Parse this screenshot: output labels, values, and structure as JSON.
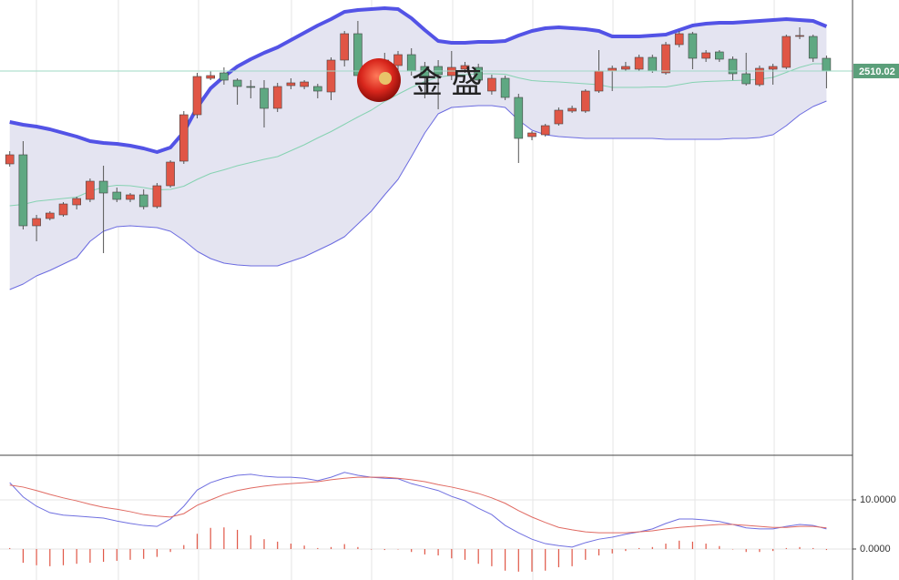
{
  "chart_data": [
    {
      "type": "candlestick",
      "watermark": "金 盛",
      "up_color": "#e05646",
      "down_color": "#5fa882",
      "ylim": [
        2088,
        2588
      ],
      "open": [
        2408,
        2418,
        2340,
        2348,
        2352,
        2363,
        2369,
        2389,
        2377,
        2369,
        2374,
        2361,
        2384,
        2411,
        2462,
        2502,
        2508,
        2500,
        2493,
        2491,
        2469,
        2494,
        2493,
        2493,
        2487,
        2522,
        2551,
        2518,
        2516,
        2516,
        2528,
        2515,
        2515,
        2505,
        2512,
        2514,
        2488,
        2502,
        2481,
        2438,
        2440,
        2452,
        2466,
        2466,
        2488,
        2510,
        2512,
        2512,
        2525,
        2508,
        2539,
        2551,
        2524,
        2531,
        2523,
        2507,
        2495,
        2512,
        2514,
        2548,
        2548,
        2524
      ],
      "high": [
        2422,
        2433,
        2352,
        2356,
        2366,
        2372,
        2392,
        2406,
        2382,
        2376,
        2380,
        2387,
        2412,
        2466,
        2508,
        2510,
        2514,
        2502,
        2500,
        2500,
        2497,
        2502,
        2500,
        2496,
        2525,
        2554,
        2565,
        2522,
        2530,
        2532,
        2535,
        2520,
        2522,
        2532,
        2520,
        2518,
        2506,
        2505,
        2485,
        2444,
        2452,
        2470,
        2472,
        2490,
        2533,
        2516,
        2520,
        2528,
        2528,
        2542,
        2554,
        2553,
        2533,
        2533,
        2526,
        2530,
        2516,
        2518,
        2550,
        2558,
        2550,
        2527
      ],
      "low": [
        2405,
        2336,
        2323,
        2346,
        2350,
        2358,
        2366,
        2310,
        2366,
        2366,
        2358,
        2359,
        2382,
        2408,
        2458,
        2500,
        2495,
        2473,
        2480,
        2448,
        2465,
        2490,
        2490,
        2480,
        2478,
        2515,
        2500,
        2490,
        2512,
        2510,
        2505,
        2480,
        2468,
        2500,
        2508,
        2496,
        2484,
        2478,
        2409,
        2434,
        2438,
        2450,
        2464,
        2464,
        2486,
        2488,
        2510,
        2510,
        2508,
        2506,
        2536,
        2512,
        2520,
        2520,
        2500,
        2494,
        2493,
        2495,
        2512,
        2545,
        2520,
        2491
      ],
      "close": [
        2418,
        2340,
        2348,
        2354,
        2364,
        2370,
        2389,
        2376,
        2369,
        2374,
        2361,
        2384,
        2410,
        2462,
        2504,
        2505,
        2500,
        2493,
        2492,
        2469,
        2493,
        2497,
        2498,
        2488,
        2522,
        2551,
        2505,
        2495,
        2522,
        2528,
        2510,
        2503,
        2506,
        2514,
        2516,
        2500,
        2502,
        2481,
        2436,
        2442,
        2450,
        2467,
        2469,
        2488,
        2510,
        2513,
        2515,
        2525,
        2510,
        2539,
        2551,
        2524,
        2530,
        2523,
        2507,
        2496,
        2513,
        2515,
        2548,
        2549,
        2524,
        2510.02
      ],
      "band_fill": "#e4e4f1",
      "bands": [
        {
          "color": "#5353e6",
          "line_width": 4,
          "values": [
            2454,
            2451,
            2449,
            2446,
            2442,
            2438,
            2433,
            2431,
            2430,
            2428,
            2425,
            2421,
            2426,
            2443,
            2470,
            2491,
            2504,
            2515,
            2523,
            2530,
            2536,
            2544,
            2552,
            2560,
            2567,
            2575,
            2577,
            2578,
            2579,
            2578,
            2568,
            2555,
            2543,
            2541,
            2541,
            2542,
            2542,
            2543,
            2549,
            2554,
            2557,
            2558,
            2557,
            2556,
            2554,
            2548,
            2548,
            2548,
            2549,
            2550,
            2555,
            2560,
            2562,
            2563,
            2563,
            2564,
            2565,
            2566,
            2567,
            2566,
            2565,
            2559
          ]
        },
        {
          "color": "#86d2b2",
          "line_width": 1,
          "values": [
            2362,
            2363.5,
            2367,
            2368.5,
            2370,
            2371.5,
            2378,
            2382.5,
            2384.5,
            2384,
            2382,
            2379.5,
            2380,
            2383.5,
            2391,
            2397.5,
            2401.5,
            2406,
            2409.5,
            2413,
            2416,
            2422.5,
            2429,
            2436.5,
            2443.5,
            2451.5,
            2459.5,
            2467,
            2476.5,
            2484.5,
            2492,
            2498.5,
            2503,
            2505.5,
            2506,
            2507,
            2507,
            2506.5,
            2502.5,
            2499.5,
            2498.5,
            2498,
            2497,
            2496,
            2495,
            2492,
            2492,
            2492,
            2492.5,
            2492.5,
            2495,
            2497.5,
            2498.5,
            2499,
            2499.5,
            2500,
            2501,
            2503,
            2508.5,
            2514,
            2518,
            2518
          ]
        },
        {
          "color": "#6b6be0",
          "line_width": 1,
          "values": [
            2270,
            2276,
            2285,
            2291,
            2298,
            2305,
            2323,
            2334,
            2339,
            2340,
            2339,
            2338,
            2334,
            2324,
            2312,
            2304,
            2299,
            2297,
            2296,
            2296,
            2296,
            2301,
            2306,
            2313,
            2320,
            2328,
            2342,
            2356,
            2374,
            2391,
            2416,
            2442,
            2463,
            2470,
            2471,
            2472,
            2472,
            2470,
            2456,
            2445,
            2440,
            2438,
            2437,
            2436,
            2436,
            2436,
            2436,
            2436,
            2436,
            2435,
            2435,
            2435,
            2435,
            2435,
            2436,
            2436,
            2437,
            2440,
            2450,
            2462,
            2471,
            2477
          ]
        }
      ],
      "price_line_color": "#9fd9c6",
      "price_label_color": "#5b9f7a"
    },
    {
      "type": "macd",
      "ylim": [
        -6.3,
        19.07
      ],
      "yticks": [
        {
          "value": 10,
          "label": "10.0000"
        },
        {
          "value": 0,
          "label": "0.0000"
        }
      ],
      "grid": true,
      "histogram_color": "#e05646",
      "histogram": [
        0.2,
        -2.8,
        -3.3,
        -3.5,
        -3.3,
        -3.0,
        -2.8,
        -2.6,
        -2.4,
        -2.2,
        -2.0,
        -1.6,
        -0.6,
        0.8,
        3.1,
        4.3,
        4.4,
        3.9,
        2.8,
        2.0,
        1.5,
        1.1,
        0.7,
        0.2,
        0.4,
        1.0,
        0.4,
        0,
        -0.2,
        0,
        -0.6,
        -1.1,
        -1.3,
        -1.9,
        -2.2,
        -3.0,
        -3.5,
        -4.4,
        -4.6,
        -4.6,
        -4.4,
        -3.7,
        -3.5,
        -2.2,
        -1.3,
        -0.9,
        -0.4,
        0.2,
        0.4,
        1.1,
        1.7,
        1.5,
        1.1,
        0.6,
        0,
        -0.6,
        -0.6,
        -0.4,
        0.2,
        0.4,
        0.2,
        -0.2
      ],
      "series": [
        {
          "color": "#6f6fe0",
          "values": [
            13.5,
            10.6,
            8.7,
            7.4,
            6.9,
            6.7,
            6.5,
            6.3,
            5.7,
            5.2,
            4.8,
            4.6,
            6.1,
            8.7,
            12.0,
            13.5,
            14.4,
            15.0,
            15.2,
            14.8,
            14.6,
            14.6,
            14.4,
            13.9,
            14.6,
            15.6,
            15.0,
            14.6,
            14.4,
            14.3,
            13.3,
            12.6,
            11.9,
            10.7,
            9.8,
            8.3,
            7.0,
            4.8,
            3.3,
            2.0,
            1.1,
            0.7,
            0.4,
            1.3,
            2.0,
            2.4,
            3.0,
            3.5,
            4.1,
            5.2,
            6.1,
            6.1,
            5.9,
            5.6,
            5.0,
            4.3,
            4.1,
            4.1,
            4.6,
            5.0,
            4.8,
            4.1
          ]
        },
        {
          "color": "#e06a62",
          "values": [
            13.0,
            12.6,
            11.9,
            11.1,
            10.4,
            9.8,
            9.1,
            8.5,
            8.1,
            7.6,
            7.0,
            6.7,
            6.5,
            7.2,
            8.9,
            10.0,
            11.1,
            11.9,
            12.4,
            12.8,
            13.1,
            13.3,
            13.5,
            13.7,
            14.1,
            14.4,
            14.6,
            14.6,
            14.6,
            14.4,
            14.1,
            13.7,
            13.1,
            12.6,
            12.0,
            11.3,
            10.4,
            9.3,
            7.8,
            6.5,
            5.4,
            4.4,
            3.9,
            3.5,
            3.3,
            3.3,
            3.3,
            3.5,
            3.7,
            4.1,
            4.4,
            4.6,
            4.8,
            5.0,
            5.0,
            4.8,
            4.6,
            4.4,
            4.4,
            4.6,
            4.6,
            4.3
          ]
        }
      ]
    }
  ]
}
